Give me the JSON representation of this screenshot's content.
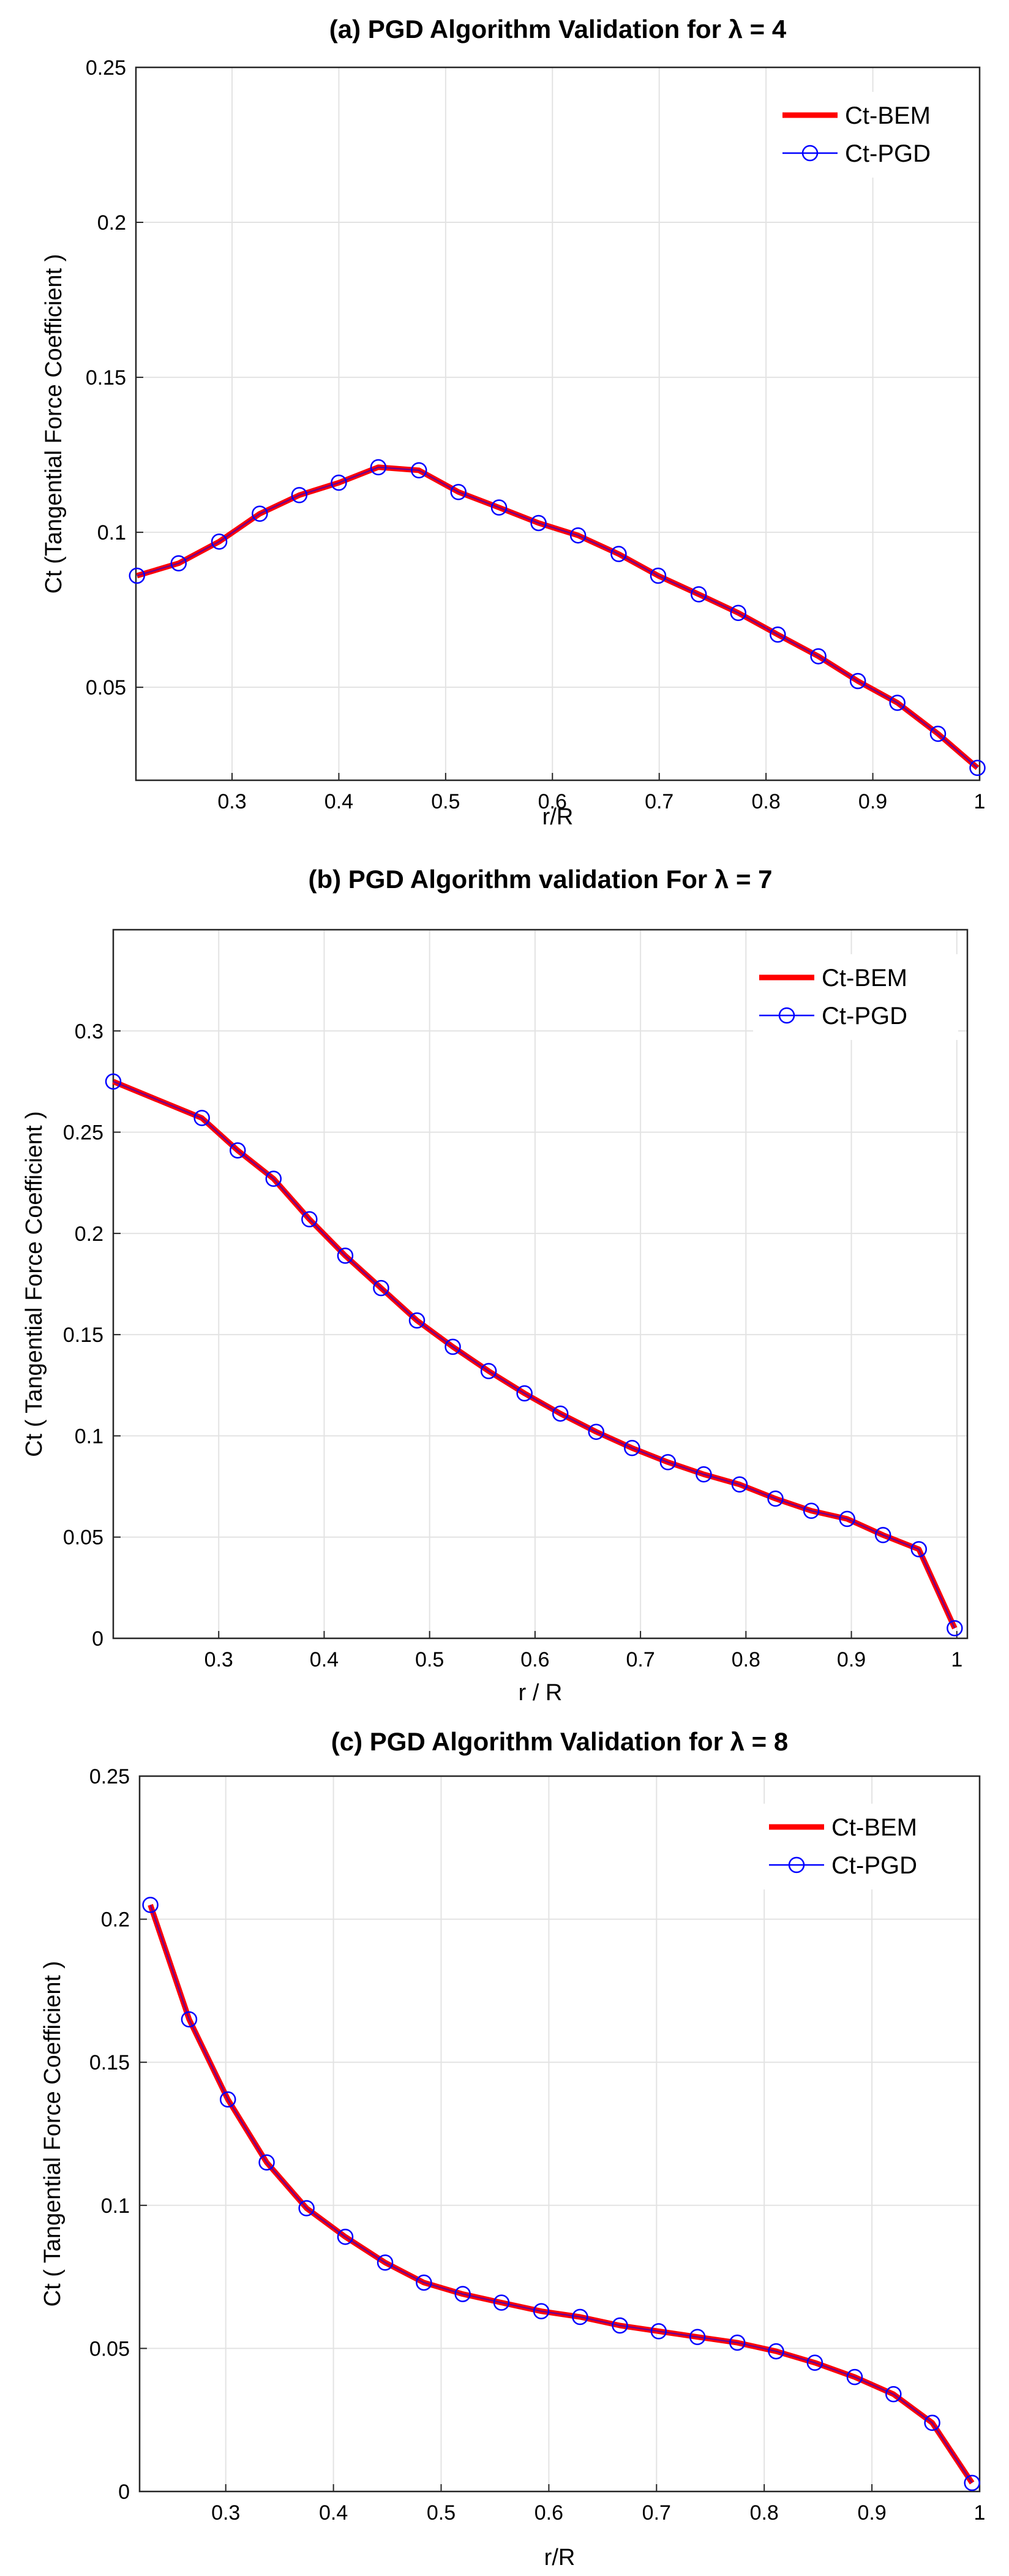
{
  "chart_data": [
    {
      "type": "line",
      "title": "(a) PGD Algorithm Validation for λ = 4",
      "xlabel": "r/R",
      "ylabel": "Ct (Tangential Force Coefficient )",
      "xlim": [
        0.21,
        1.0
      ],
      "ylim": [
        0.02,
        0.25
      ],
      "xticks": [
        0.3,
        0.4,
        0.5,
        0.6,
        0.7,
        0.8,
        0.9,
        1
      ],
      "xtick_labels": [
        "0.3",
        "0.4",
        "0.5",
        "0.6",
        "0.7",
        "0.8",
        "0.9",
        "1"
      ],
      "yticks": [
        0.05,
        0.1,
        0.15,
        0.2,
        0.25
      ],
      "ytick_labels": [
        "0.05",
        "0.1",
        "0.15",
        "0.2",
        "0.25"
      ],
      "grid": true,
      "legend_position": "top-right",
      "x": [
        0.211,
        0.25,
        0.288,
        0.326,
        0.363,
        0.4,
        0.437,
        0.475,
        0.512,
        0.55,
        0.587,
        0.624,
        0.662,
        0.699,
        0.737,
        0.774,
        0.811,
        0.849,
        0.886,
        0.923,
        0.961,
        0.998
      ],
      "series": [
        {
          "name": "Ct-BEM",
          "color": "#ff0000",
          "marker": "none",
          "values": [
            0.086,
            0.09,
            0.097,
            0.106,
            0.112,
            0.116,
            0.121,
            0.12,
            0.113,
            0.108,
            0.103,
            0.099,
            0.093,
            0.086,
            0.08,
            0.074,
            0.067,
            0.06,
            0.052,
            0.045,
            0.035,
            0.024
          ]
        },
        {
          "name": "Ct-PGD",
          "color": "#0000ff",
          "marker": "circle",
          "values": [
            0.086,
            0.09,
            0.097,
            0.106,
            0.112,
            0.116,
            0.121,
            0.12,
            0.113,
            0.108,
            0.103,
            0.099,
            0.093,
            0.086,
            0.08,
            0.074,
            0.067,
            0.06,
            0.052,
            0.045,
            0.035,
            0.024
          ]
        }
      ]
    },
    {
      "type": "line",
      "title": "(b)   PGD Algorithm validation For λ = 7",
      "xlabel": "r / R",
      "ylabel": "Ct ( Tangential Force Coefficient )",
      "xlim": [
        0.2,
        1.01
      ],
      "ylim": [
        0,
        0.35
      ],
      "xticks": [
        0.3,
        0.4,
        0.5,
        0.6,
        0.7,
        0.8,
        0.9,
        1
      ],
      "xtick_labels": [
        "0.3",
        "0.4",
        "0.5",
        "0.6",
        "0.7",
        "0.8",
        "0.9",
        "1"
      ],
      "yticks": [
        0,
        0.05,
        0.1,
        0.15,
        0.2,
        0.25,
        0.3
      ],
      "ytick_labels": [
        "0",
        "0.05",
        "0.1",
        "0.15",
        "0.2",
        "0.25",
        "0.3"
      ],
      "grid": true,
      "legend_position": "top-right",
      "x": [
        0.2,
        0.284,
        0.318,
        0.352,
        0.386,
        0.42,
        0.454,
        0.488,
        0.522,
        0.556,
        0.59,
        0.624,
        0.658,
        0.692,
        0.726,
        0.76,
        0.794,
        0.828,
        0.862,
        0.896,
        0.93,
        0.964,
        0.998
      ],
      "series": [
        {
          "name": "Ct-BEM",
          "color": "#ff0000",
          "marker": "none",
          "values": [
            0.275,
            0.257,
            0.241,
            0.227,
            0.207,
            0.189,
            0.173,
            0.157,
            0.144,
            0.132,
            0.121,
            0.111,
            0.102,
            0.094,
            0.087,
            0.081,
            0.076,
            0.069,
            0.063,
            0.059,
            0.051,
            0.044,
            0.005
          ]
        },
        {
          "name": "Ct-PGD",
          "color": "#0000ff",
          "marker": "circle",
          "values": [
            0.275,
            0.257,
            0.241,
            0.227,
            0.207,
            0.189,
            0.173,
            0.157,
            0.144,
            0.132,
            0.121,
            0.111,
            0.102,
            0.094,
            0.087,
            0.081,
            0.076,
            0.069,
            0.063,
            0.059,
            0.051,
            0.044,
            0.005
          ]
        }
      ]
    },
    {
      "type": "line",
      "title": "(c) PGD Algorithm Validation for λ = 8",
      "xlabel": "r/R",
      "ylabel": "Ct ( Tangential Force Coefficient )",
      "xlim": [
        0.22,
        1.0
      ],
      "ylim": [
        0,
        0.25
      ],
      "xticks": [
        0.3,
        0.4,
        0.5,
        0.6,
        0.7,
        0.8,
        0.9,
        1
      ],
      "xtick_labels": [
        "0.3",
        "0.4",
        "0.5",
        "0.6",
        "0.7",
        "0.8",
        "0.9",
        "1"
      ],
      "yticks": [
        0,
        0.05,
        0.1,
        0.15,
        0.2,
        0.25
      ],
      "ytick_labels": [
        "0",
        "0.05",
        "0.1",
        "0.15",
        "0.2",
        "0.25"
      ],
      "grid": true,
      "legend_position": "top-right",
      "x": [
        0.23,
        0.266,
        0.302,
        0.338,
        0.375,
        0.411,
        0.448,
        0.484,
        0.52,
        0.556,
        0.593,
        0.629,
        0.666,
        0.702,
        0.738,
        0.775,
        0.811,
        0.847,
        0.884,
        0.92,
        0.956,
        0.993
      ],
      "series": [
        {
          "name": "Ct-BEM",
          "color": "#ff0000",
          "marker": "none",
          "values": [
            0.205,
            0.165,
            0.137,
            0.115,
            0.099,
            0.089,
            0.08,
            0.073,
            0.069,
            0.066,
            0.063,
            0.061,
            0.058,
            0.056,
            0.054,
            0.052,
            0.049,
            0.045,
            0.04,
            0.034,
            0.024,
            0.003
          ]
        },
        {
          "name": "Ct-PGD",
          "color": "#0000ff",
          "marker": "circle",
          "values": [
            0.205,
            0.165,
            0.137,
            0.115,
            0.099,
            0.089,
            0.08,
            0.073,
            0.069,
            0.066,
            0.063,
            0.061,
            0.058,
            0.056,
            0.054,
            0.052,
            0.049,
            0.045,
            0.04,
            0.034,
            0.024,
            0.003
          ]
        }
      ]
    }
  ]
}
